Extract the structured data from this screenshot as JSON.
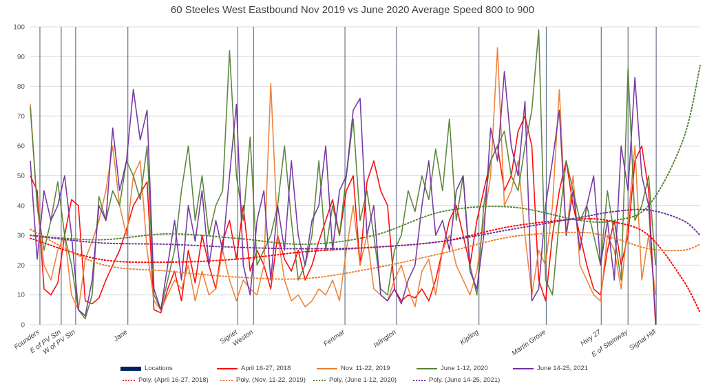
{
  "chart_data": {
    "type": "line",
    "title": "60 Steeles West Eastbound Nov 2019 vs June 2020 Average Speed 800 to 900",
    "xlabel": "",
    "ylabel": "",
    "ylim": [
      0,
      100
    ],
    "yticks": [
      0,
      10,
      20,
      30,
      40,
      50,
      60,
      70,
      80,
      90,
      100
    ],
    "xlim": [
      0,
      975
    ],
    "grid": true,
    "legend_position": "bottom",
    "locations": {
      "name": "Locations",
      "color": "#002060",
      "items": [
        {
          "label": "Founders",
          "x": 14
        },
        {
          "label": "E of PV Stn",
          "x": 45
        },
        {
          "label": "W of PV Stn",
          "x": 66
        },
        {
          "label": "Jane",
          "x": 142
        },
        {
          "label": "Signet",
          "x": 302
        },
        {
          "label": "Weston",
          "x": 325
        },
        {
          "label": "Fenmar",
          "x": 458
        },
        {
          "label": "Islington",
          "x": 533
        },
        {
          "label": "Kipling",
          "x": 653
        },
        {
          "label": "Martin Grove",
          "x": 751
        },
        {
          "label": "Hwy 27",
          "x": 831
        },
        {
          "label": "E of Steinway",
          "x": 870
        },
        {
          "label": "Signal Hill",
          "x": 911
        }
      ]
    },
    "x": [
      0,
      10,
      20,
      30,
      40,
      50,
      60,
      70,
      80,
      90,
      100,
      110,
      120,
      130,
      140,
      150,
      160,
      170,
      180,
      190,
      200,
      210,
      220,
      230,
      240,
      250,
      260,
      270,
      280,
      290,
      300,
      310,
      320,
      330,
      340,
      350,
      360,
      370,
      380,
      390,
      400,
      410,
      420,
      430,
      440,
      450,
      460,
      470,
      480,
      490,
      500,
      510,
      520,
      530,
      540,
      550,
      560,
      570,
      580,
      590,
      600,
      610,
      620,
      630,
      640,
      650,
      660,
      670,
      680,
      690,
      700,
      710,
      720,
      730,
      740,
      750,
      760,
      770,
      780,
      790,
      800,
      810,
      820,
      830,
      840,
      850,
      860,
      870,
      880,
      890,
      900,
      910
    ],
    "series": [
      {
        "name": "April 16-27, 2018",
        "color": "#ff0000",
        "values": [
          50,
          45,
          12,
          10,
          14,
          30,
          42,
          40,
          8,
          7,
          9,
          15,
          20,
          25,
          32,
          40,
          44,
          48,
          5,
          4,
          12,
          18,
          8,
          25,
          14,
          30,
          20,
          12,
          28,
          35,
          22,
          40,
          18,
          25,
          20,
          12,
          30,
          22,
          18,
          25,
          15,
          20,
          28,
          35,
          42,
          30,
          45,
          50,
          20,
          48,
          55,
          45,
          40,
          12,
          8,
          10,
          9,
          12,
          8,
          15,
          25,
          35,
          40,
          30,
          20,
          35,
          45,
          55,
          60,
          45,
          50,
          65,
          70,
          60,
          15,
          8,
          30,
          45,
          55,
          40,
          30,
          20,
          12,
          10,
          25,
          35,
          20,
          30,
          55,
          60,
          45,
          0
        ]
      },
      {
        "name": "Nov. 11-22, 2019",
        "color": "#ed7d31",
        "values": [
          74,
          40,
          20,
          15,
          25,
          30,
          10,
          5,
          22,
          28,
          35,
          45,
          60,
          40,
          30,
          50,
          55,
          25,
          8,
          5,
          10,
          15,
          12,
          20,
          8,
          18,
          10,
          12,
          25,
          15,
          8,
          15,
          12,
          10,
          20,
          81,
          30,
          15,
          8,
          10,
          6,
          8,
          12,
          10,
          15,
          8,
          25,
          40,
          20,
          30,
          12,
          10,
          8,
          15,
          20,
          12,
          6,
          18,
          22,
          10,
          25,
          30,
          20,
          15,
          10,
          18,
          35,
          50,
          93,
          40,
          45,
          55,
          30,
          10,
          25,
          20,
          40,
          79,
          30,
          50,
          20,
          15,
          10,
          8,
          30,
          25,
          12,
          35,
          60,
          15,
          30,
          10
        ]
      },
      {
        "name": "June 1-12, 2020",
        "color": "#548235",
        "values": [
          73,
          40,
          25,
          35,
          48,
          30,
          20,
          5,
          2,
          10,
          43,
          35,
          45,
          40,
          55,
          50,
          42,
          60,
          10,
          5,
          15,
          25,
          45,
          60,
          35,
          50,
          30,
          40,
          45,
          92,
          50,
          35,
          63,
          20,
          25,
          30,
          40,
          60,
          35,
          15,
          20,
          30,
          55,
          25,
          40,
          30,
          50,
          69,
          35,
          45,
          30,
          12,
          10,
          25,
          30,
          45,
          38,
          50,
          42,
          59,
          45,
          69,
          35,
          50,
          20,
          10,
          40,
          55,
          60,
          65,
          50,
          45,
          60,
          72,
          99,
          15,
          10,
          35,
          55,
          45,
          35,
          40,
          30,
          20,
          45,
          30,
          15,
          86,
          35,
          40,
          50,
          20
        ]
      },
      {
        "name": "June 14-25, 2021",
        "color": "#7030a0",
        "values": [
          55,
          22,
          45,
          35,
          40,
          50,
          30,
          5,
          3,
          15,
          40,
          35,
          66,
          45,
          55,
          79,
          62,
          72,
          12,
          5,
          20,
          35,
          15,
          40,
          28,
          45,
          20,
          35,
          25,
          50,
          74,
          20,
          10,
          35,
          45,
          15,
          40,
          25,
          55,
          30,
          20,
          35,
          40,
          60,
          25,
          45,
          50,
          72,
          76,
          30,
          40,
          10,
          8,
          12,
          7,
          15,
          20,
          40,
          55,
          30,
          35,
          25,
          45,
          50,
          18,
          12,
          30,
          66,
          55,
          85,
          60,
          50,
          75,
          8,
          12,
          40,
          55,
          72,
          30,
          45,
          25,
          40,
          50,
          20,
          35,
          15,
          60,
          45,
          83,
          50,
          40,
          2
        ]
      }
    ],
    "trendlines": {
      "x": [
        0,
        100,
        200,
        300,
        400,
        500,
        600,
        700,
        800,
        850,
        900,
        950,
        975
      ],
      "series": [
        {
          "name": "Poly. (April 16-27, 2018)",
          "color": "#ff0000",
          "values": [
            29,
            22,
            21,
            22,
            24.5,
            26,
            28,
            33,
            35.5,
            34.5,
            30,
            15,
            4
          ]
        },
        {
          "name": "Poly. (Nov. 11-22, 2019)",
          "color": "#ed7d31",
          "values": [
            32,
            20.5,
            18,
            16,
            15.5,
            19,
            24,
            29.5,
            31,
            29,
            25.5,
            25,
            27
          ]
        },
        {
          "name": "Poly. (June 1-12, 2020)",
          "color": "#548235",
          "values": [
            30,
            28.5,
            30.5,
            29,
            27,
            30,
            38,
            39.5,
            35,
            35,
            40,
            62,
            87
          ]
        },
        {
          "name": "Poly. (June 14-25, 2021)",
          "color": "#7030a0",
          "values": [
            30,
            27.5,
            27,
            26,
            25.5,
            26,
            28,
            32,
            36,
            38,
            38.5,
            35,
            30
          ]
        }
      ]
    }
  }
}
